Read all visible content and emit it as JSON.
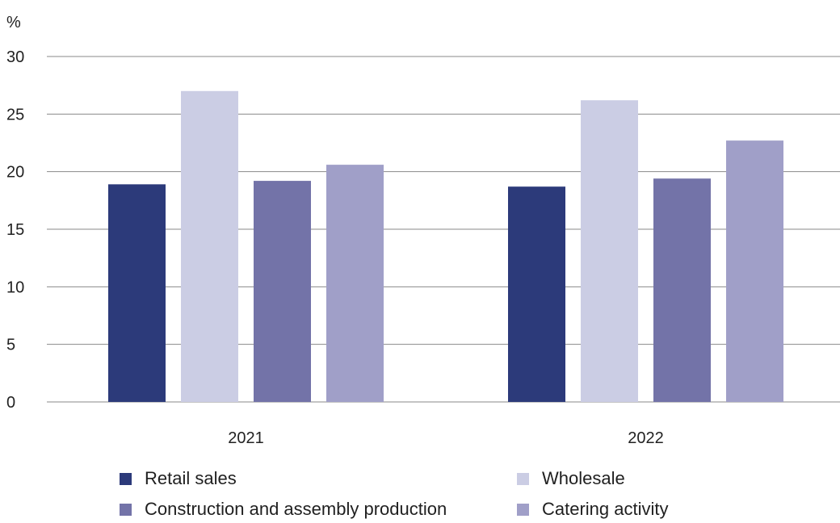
{
  "chart_data": {
    "type": "bar",
    "ylabel": "%",
    "ylim": [
      0,
      30
    ],
    "yticks": [
      0,
      5,
      10,
      15,
      20,
      25,
      30
    ],
    "grid": true,
    "legend_position": "bottom",
    "categories": [
      "2021",
      "2022"
    ],
    "series": [
      {
        "name": "Retail sales",
        "color": "#2c3a7a",
        "values": [
          18.9,
          18.7
        ]
      },
      {
        "name": "Wholesale",
        "color": "#cbcde4",
        "values": [
          27.0,
          26.2
        ]
      },
      {
        "name": "Construction and assembly production",
        "color": "#7373a8",
        "values": [
          19.2,
          19.4
        ]
      },
      {
        "name": "Catering activity",
        "color": "#a09fc8",
        "values": [
          20.6,
          22.7
        ]
      }
    ]
  }
}
